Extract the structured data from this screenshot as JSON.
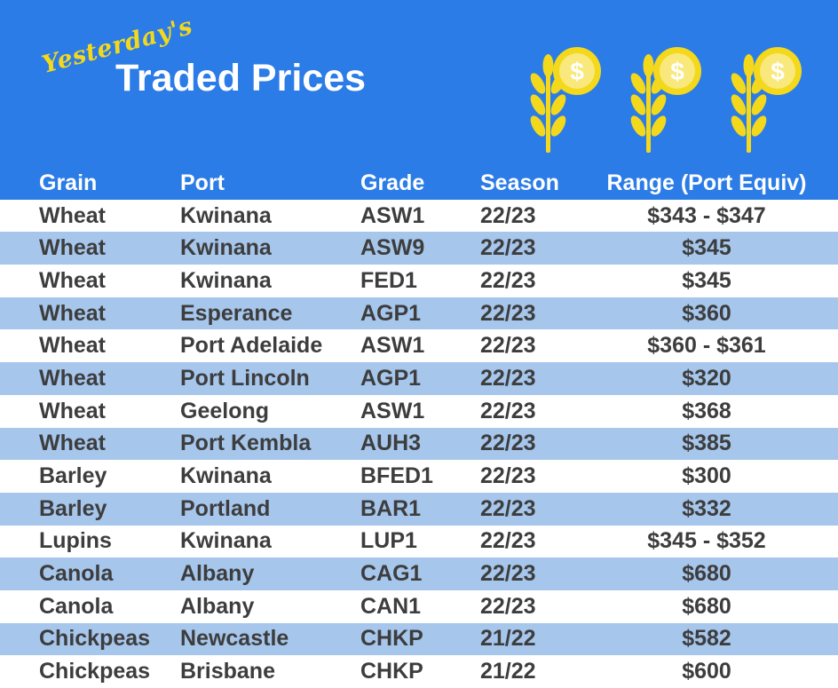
{
  "header": {
    "script_word": "Yesterday's",
    "title": "Traded Prices",
    "icons": [
      "wheat-dollar-icon",
      "wheat-dollar-icon",
      "wheat-dollar-icon"
    ],
    "colors": {
      "background": "#2b7ce6",
      "accent": "#f4d81c"
    }
  },
  "table": {
    "columns": [
      "Grain",
      "Port",
      "Grade",
      "Season",
      "Range (Port Equiv)"
    ],
    "rows": [
      [
        "Wheat",
        "Kwinana",
        "ASW1",
        "22/23",
        "$343 - $347"
      ],
      [
        "Wheat",
        "Kwinana",
        "ASW9",
        "22/23",
        "$345"
      ],
      [
        "Wheat",
        "Kwinana",
        "FED1",
        "22/23",
        "$345"
      ],
      [
        "Wheat",
        "Esperance",
        "AGP1",
        "22/23",
        "$360"
      ],
      [
        "Wheat",
        "Port Adelaide",
        "ASW1",
        "22/23",
        "$360 - $361"
      ],
      [
        "Wheat",
        "Port Lincoln",
        "AGP1",
        "22/23",
        "$320"
      ],
      [
        "Wheat",
        "Geelong",
        "ASW1",
        "22/23",
        "$368"
      ],
      [
        "Wheat",
        "Port Kembla",
        "AUH3",
        "22/23",
        "$385"
      ],
      [
        "Barley",
        "Kwinana",
        "BFED1",
        "22/23",
        "$300"
      ],
      [
        "Barley",
        "Portland",
        "BAR1",
        "22/23",
        "$332"
      ],
      [
        "Lupins",
        "Kwinana",
        "LUP1",
        "22/23",
        "$345 - $352"
      ],
      [
        "Canola",
        "Albany",
        "CAG1",
        "22/23",
        "$680"
      ],
      [
        "Canola",
        "Albany",
        "CAN1",
        "22/23",
        "$680"
      ],
      [
        "Chickpeas",
        "Newcastle",
        "CHKP",
        "21/22",
        "$582"
      ],
      [
        "Chickpeas",
        "Brisbane",
        "CHKP",
        "21/22",
        "$600"
      ]
    ],
    "colors": {
      "header": "#2b7ce6",
      "band": "#a6c6ec",
      "text": "#3d3d3d"
    }
  }
}
